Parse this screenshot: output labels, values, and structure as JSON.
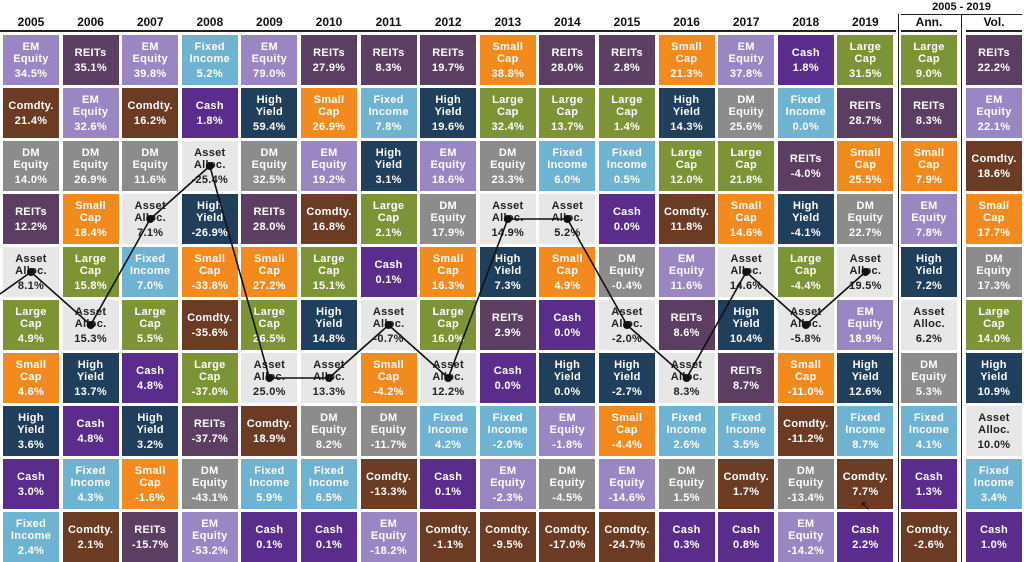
{
  "colors": {
    "EM Equity": "#9b86c4",
    "REITs": "#5d3e63",
    "Fixed Income": "#6fb3d2",
    "Small Cap": "#f28a1e",
    "Cash": "#5a2d8c",
    "Large Cap": "#7d9436",
    "Comdty.": "#6b3b24",
    "DM Equity": "#8c8c8c",
    "High Yield": "#1f3f5c",
    "Asset Alloc.": "#e7e7e7",
    "line": "#111111",
    "separator": "#222222"
  },
  "icons": {
    "cursor": "mouse-pointer-icon"
  },
  "chart_data": {
    "type": "table",
    "title": "",
    "span_header": "2005 - 2019",
    "columns": [
      "2005",
      "2006",
      "2007",
      "2008",
      "2009",
      "2010",
      "2011",
      "2012",
      "2013",
      "2014",
      "2015",
      "2016",
      "2017",
      "2018",
      "2019",
      "Ann.",
      "Vol."
    ],
    "highlight": "Asset Alloc.",
    "cells": [
      [
        [
          "EM\nEquity",
          "34.5%"
        ],
        [
          "Comdty.",
          "21.4%"
        ],
        [
          "DM\nEquity",
          "14.0%"
        ],
        [
          "REITs",
          "12.2%"
        ],
        [
          "Asset\nAlloc.",
          "8.1%"
        ],
        [
          "Large\nCap",
          "4.9%"
        ],
        [
          "Small\nCap",
          "4.6%"
        ],
        [
          "High\nYield",
          "3.6%"
        ],
        [
          "Cash",
          "3.0%"
        ],
        [
          "Fixed\nIncome",
          "2.4%"
        ]
      ],
      [
        [
          "REITs",
          "35.1%"
        ],
        [
          "EM\nEquity",
          "32.6%"
        ],
        [
          "DM\nEquity",
          "26.9%"
        ],
        [
          "Small\nCap",
          "18.4%"
        ],
        [
          "Large\nCap",
          "15.8%"
        ],
        [
          "Asset\nAlloc.",
          "15.3%"
        ],
        [
          "High\nYield",
          "13.7%"
        ],
        [
          "Cash",
          "4.8%"
        ],
        [
          "Fixed\nIncome",
          "4.3%"
        ],
        [
          "Comdty.",
          "2.1%"
        ]
      ],
      [
        [
          "EM\nEquity",
          "39.8%"
        ],
        [
          "Comdty.",
          "16.2%"
        ],
        [
          "DM\nEquity",
          "11.6%"
        ],
        [
          "Asset\nAlloc.",
          "7.1%"
        ],
        [
          "Fixed\nIncome",
          "7.0%"
        ],
        [
          "Large\nCap",
          "5.5%"
        ],
        [
          "Cash",
          "4.8%"
        ],
        [
          "High\nYield",
          "3.2%"
        ],
        [
          "Small\nCap",
          "-1.6%"
        ],
        [
          "REITs",
          "-15.7%"
        ]
      ],
      [
        [
          "Fixed\nIncome",
          "5.2%"
        ],
        [
          "Cash",
          "1.8%"
        ],
        [
          "Asset\nAlloc.",
          "-25.4%"
        ],
        [
          "High\nYield",
          "-26.9%"
        ],
        [
          "Small\nCap",
          "-33.8%"
        ],
        [
          "Comdty.",
          "-35.6%"
        ],
        [
          "Large\nCap",
          "-37.0%"
        ],
        [
          "REITs",
          "-37.7%"
        ],
        [
          "DM\nEquity",
          "-43.1%"
        ],
        [
          "EM\nEquity",
          "-53.2%"
        ]
      ],
      [
        [
          "EM\nEquity",
          "79.0%"
        ],
        [
          "High\nYield",
          "59.4%"
        ],
        [
          "DM\nEquity",
          "32.5%"
        ],
        [
          "REITs",
          "28.0%"
        ],
        [
          "Small\nCap",
          "27.2%"
        ],
        [
          "Large\nCap",
          "26.5%"
        ],
        [
          "Asset\nAlloc.",
          "25.0%"
        ],
        [
          "Comdty.",
          "18.9%"
        ],
        [
          "Fixed\nIncome",
          "5.9%"
        ],
        [
          "Cash",
          "0.1%"
        ]
      ],
      [
        [
          "REITs",
          "27.9%"
        ],
        [
          "Small\nCap",
          "26.9%"
        ],
        [
          "EM\nEquity",
          "19.2%"
        ],
        [
          "Comdty.",
          "16.8%"
        ],
        [
          "Large\nCap",
          "15.1%"
        ],
        [
          "High\nYield",
          "14.8%"
        ],
        [
          "Asset\nAlloc.",
          "13.3%"
        ],
        [
          "DM\nEquity",
          "8.2%"
        ],
        [
          "Fixed\nIncome",
          "6.5%"
        ],
        [
          "Cash",
          "0.1%"
        ]
      ],
      [
        [
          "REITs",
          "8.3%"
        ],
        [
          "Fixed\nIncome",
          "7.8%"
        ],
        [
          "High\nYield",
          "3.1%"
        ],
        [
          "Large\nCap",
          "2.1%"
        ],
        [
          "Cash",
          "0.1%"
        ],
        [
          "Asset\nAlloc.",
          "-0.7%"
        ],
        [
          "Small\nCap",
          "-4.2%"
        ],
        [
          "DM\nEquity",
          "-11.7%"
        ],
        [
          "Comdty.",
          "-13.3%"
        ],
        [
          "EM\nEquity",
          "-18.2%"
        ]
      ],
      [
        [
          "REITs",
          "19.7%"
        ],
        [
          "High\nYield",
          "19.6%"
        ],
        [
          "EM\nEquity",
          "18.6%"
        ],
        [
          "DM\nEquity",
          "17.9%"
        ],
        [
          "Small\nCap",
          "16.3%"
        ],
        [
          "Large\nCap",
          "16.0%"
        ],
        [
          "Asset\nAlloc.",
          "12.2%"
        ],
        [
          "Fixed\nIncome",
          "4.2%"
        ],
        [
          "Cash",
          "0.1%"
        ],
        [
          "Comdty.",
          "-1.1%"
        ]
      ],
      [
        [
          "Small\nCap",
          "38.8%"
        ],
        [
          "Large\nCap",
          "32.4%"
        ],
        [
          "DM\nEquity",
          "23.3%"
        ],
        [
          "Asset\nAlloc.",
          "14.9%"
        ],
        [
          "High\nYield",
          "7.3%"
        ],
        [
          "REITs",
          "2.9%"
        ],
        [
          "Cash",
          "0.0%"
        ],
        [
          "Fixed\nIncome",
          "-2.0%"
        ],
        [
          "EM\nEquity",
          "-2.3%"
        ],
        [
          "Comdty.",
          "-9.5%"
        ]
      ],
      [
        [
          "REITs",
          "28.0%"
        ],
        [
          "Large\nCap",
          "13.7%"
        ],
        [
          "Fixed\nIncome",
          "6.0%"
        ],
        [
          "Asset\nAlloc.",
          "5.2%"
        ],
        [
          "Small\nCap",
          "4.9%"
        ],
        [
          "Cash",
          "0.0%"
        ],
        [
          "High\nYield",
          "0.0%"
        ],
        [
          "EM\nEquity",
          "-1.8%"
        ],
        [
          "DM\nEquity",
          "-4.5%"
        ],
        [
          "Comdty.",
          "-17.0%"
        ]
      ],
      [
        [
          "REITs",
          "2.8%"
        ],
        [
          "Large\nCap",
          "1.4%"
        ],
        [
          "Fixed\nIncome",
          "0.5%"
        ],
        [
          "Cash",
          "0.0%"
        ],
        [
          "DM\nEquity",
          "-0.4%"
        ],
        [
          "Asset\nAlloc.",
          "-2.0%"
        ],
        [
          "High\nYield",
          "-2.7%"
        ],
        [
          "Small\nCap",
          "-4.4%"
        ],
        [
          "EM\nEquity",
          "-14.6%"
        ],
        [
          "Comdty.",
          "-24.7%"
        ]
      ],
      [
        [
          "Small\nCap",
          "21.3%"
        ],
        [
          "High\nYield",
          "14.3%"
        ],
        [
          "Large\nCap",
          "12.0%"
        ],
        [
          "Comdty.",
          "11.8%"
        ],
        [
          "EM\nEquity",
          "11.6%"
        ],
        [
          "REITs",
          "8.6%"
        ],
        [
          "Asset\nAlloc.",
          "8.3%"
        ],
        [
          "Fixed\nIncome",
          "2.6%"
        ],
        [
          "DM\nEquity",
          "1.5%"
        ],
        [
          "Cash",
          "0.3%"
        ]
      ],
      [
        [
          "EM\nEquity",
          "37.8%"
        ],
        [
          "DM\nEquity",
          "25.6%"
        ],
        [
          "Large\nCap",
          "21.8%"
        ],
        [
          "Small\nCap",
          "14.6%"
        ],
        [
          "Asset\nAlloc.",
          "14.6%"
        ],
        [
          "High\nYield",
          "10.4%"
        ],
        [
          "REITs",
          "8.7%"
        ],
        [
          "Fixed\nIncome",
          "3.5%"
        ],
        [
          "Comdty.",
          "1.7%"
        ],
        [
          "Cash",
          "0.8%"
        ]
      ],
      [
        [
          "Cash",
          "1.8%"
        ],
        [
          "Fixed\nIncome",
          "0.0%"
        ],
        [
          "REITs",
          "-4.0%"
        ],
        [
          "High\nYield",
          "-4.1%"
        ],
        [
          "Large\nCap",
          "-4.4%"
        ],
        [
          "Asset\nAlloc.",
          "-5.8%"
        ],
        [
          "Small\nCap",
          "-11.0%"
        ],
        [
          "Comdty.",
          "-11.2%"
        ],
        [
          "DM\nEquity",
          "-13.4%"
        ],
        [
          "EM\nEquity",
          "-14.2%"
        ]
      ],
      [
        [
          "Large\nCap",
          "31.5%"
        ],
        [
          "REITs",
          "28.7%"
        ],
        [
          "Small\nCap",
          "25.5%"
        ],
        [
          "DM\nEquity",
          "22.7%"
        ],
        [
          "Asset\nAlloc.",
          "19.5%"
        ],
        [
          "EM\nEquity",
          "18.9%"
        ],
        [
          "High\nYield",
          "12.6%"
        ],
        [
          "Fixed\nIncome",
          "8.7%"
        ],
        [
          "Comdty.",
          "7.7%"
        ],
        [
          "Cash",
          "2.2%"
        ]
      ],
      [
        [
          "Large\nCap",
          "9.0%"
        ],
        [
          "REITs",
          "8.3%"
        ],
        [
          "Small\nCap",
          "7.9%"
        ],
        [
          "EM\nEquity",
          "7.8%"
        ],
        [
          "High\nYield",
          "7.2%"
        ],
        [
          "Asset\nAlloc.",
          "6.2%"
        ],
        [
          "DM\nEquity",
          "5.3%"
        ],
        [
          "Fixed\nIncome",
          "4.1%"
        ],
        [
          "Cash",
          "1.3%"
        ],
        [
          "Comdty.",
          "-2.6%"
        ]
      ],
      [
        [
          "REITs",
          "22.2%"
        ],
        [
          "EM\nEquity",
          "22.1%"
        ],
        [
          "Comdty.",
          "18.6%"
        ],
        [
          "Small\nCap",
          "17.7%"
        ],
        [
          "DM\nEquity",
          "17.3%"
        ],
        [
          "Large\nCap",
          "14.0%"
        ],
        [
          "High\nYield",
          "10.9%"
        ],
        [
          "Asset\nAlloc.",
          "10.0%"
        ],
        [
          "Fixed\nIncome",
          "3.4%"
        ],
        [
          "Cash",
          "1.0%"
        ]
      ]
    ]
  }
}
